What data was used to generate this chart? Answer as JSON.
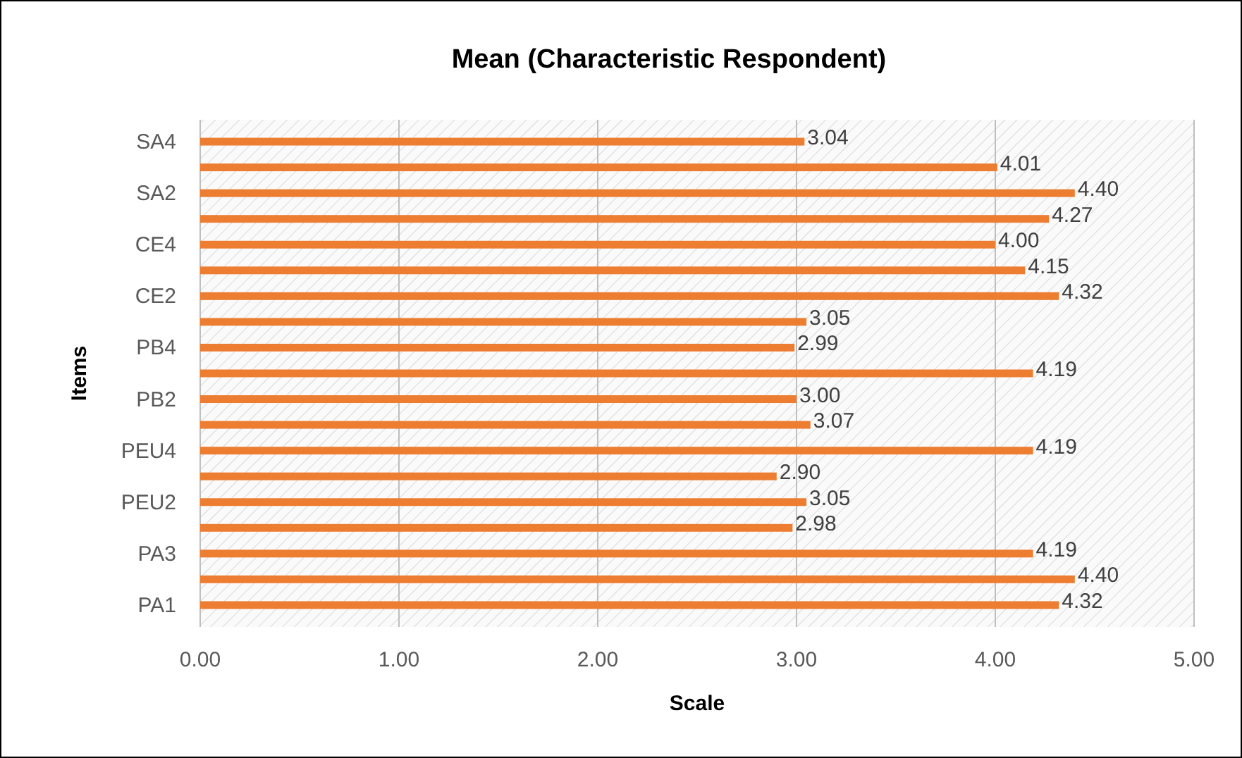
{
  "chart_data": {
    "type": "bar",
    "orientation": "horizontal",
    "title": "Mean (Characteristic Respondent)",
    "xlabel": "Scale",
    "ylabel": "Items",
    "categories": [
      "SA4",
      null,
      "SA2",
      null,
      "CE4",
      null,
      "CE2",
      null,
      "PB4",
      null,
      "PB2",
      null,
      "PEU4",
      null,
      "PEU2",
      null,
      "PA3",
      null,
      "PA1"
    ],
    "values": [
      3.04,
      4.01,
      4.4,
      4.27,
      4.0,
      4.15,
      4.32,
      3.05,
      2.99,
      4.19,
      3.0,
      3.07,
      4.19,
      2.9,
      3.05,
      2.98,
      4.19,
      4.4,
      4.32
    ],
    "color": "#ed7d31",
    "xlim": [
      0,
      5
    ],
    "xticks": [
      {
        "value": 0,
        "label": "0.00"
      },
      {
        "value": 1,
        "label": "1.00"
      },
      {
        "value": 2,
        "label": "2.00"
      },
      {
        "value": 3,
        "label": "3.00"
      },
      {
        "value": 4,
        "label": "4.00"
      },
      {
        "value": 5,
        "label": "5.00"
      }
    ],
    "value_labels": [
      "3.04",
      "4.01",
      "4.40",
      "4.27",
      "4.00",
      "4.15",
      "4.32",
      "3.05",
      "2.99",
      "4.19",
      "3.00",
      "3.07",
      "4.19",
      "2.90",
      "3.05",
      "2.98",
      "4.19",
      "4.40",
      "4.32"
    ],
    "grid": "x"
  }
}
